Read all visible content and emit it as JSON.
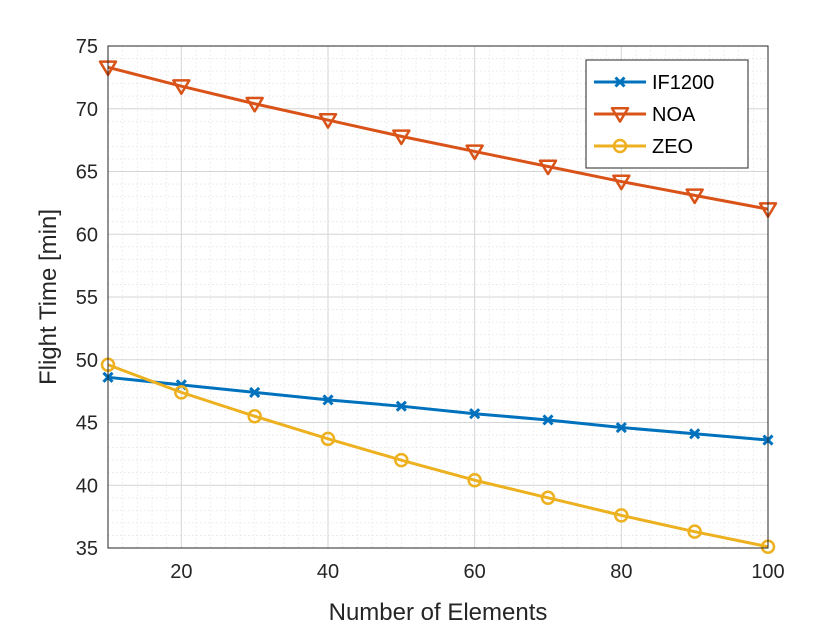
{
  "chart_data": {
    "type": "line",
    "title": "",
    "xlabel": "Number of Elements",
    "ylabel": "Flight Time [min]",
    "xlim": [
      10,
      100
    ],
    "ylim": [
      35,
      75
    ],
    "x_ticks": [
      20,
      40,
      60,
      80,
      100
    ],
    "y_ticks": [
      35,
      40,
      45,
      50,
      55,
      60,
      65,
      70,
      75
    ],
    "grid": true,
    "minor_grid": true,
    "legend_position": "top-right",
    "x": [
      10,
      20,
      30,
      40,
      50,
      60,
      70,
      80,
      90,
      100
    ],
    "series": [
      {
        "name": "IF1200",
        "color": "#0072BD",
        "marker": "x",
        "values": [
          48.6,
          48.0,
          47.4,
          46.8,
          46.3,
          45.7,
          45.2,
          44.6,
          44.1,
          43.6
        ]
      },
      {
        "name": "NOA",
        "color": "#D95319",
        "marker": "triangle-down",
        "values": [
          73.3,
          71.8,
          70.4,
          69.1,
          67.8,
          66.6,
          65.4,
          64.2,
          63.1,
          62.0
        ]
      },
      {
        "name": "ZEO",
        "color": "#EDB120",
        "marker": "circle",
        "values": [
          49.6,
          47.4,
          45.5,
          43.7,
          42.0,
          40.4,
          39.0,
          37.6,
          36.3,
          35.1
        ]
      }
    ]
  }
}
